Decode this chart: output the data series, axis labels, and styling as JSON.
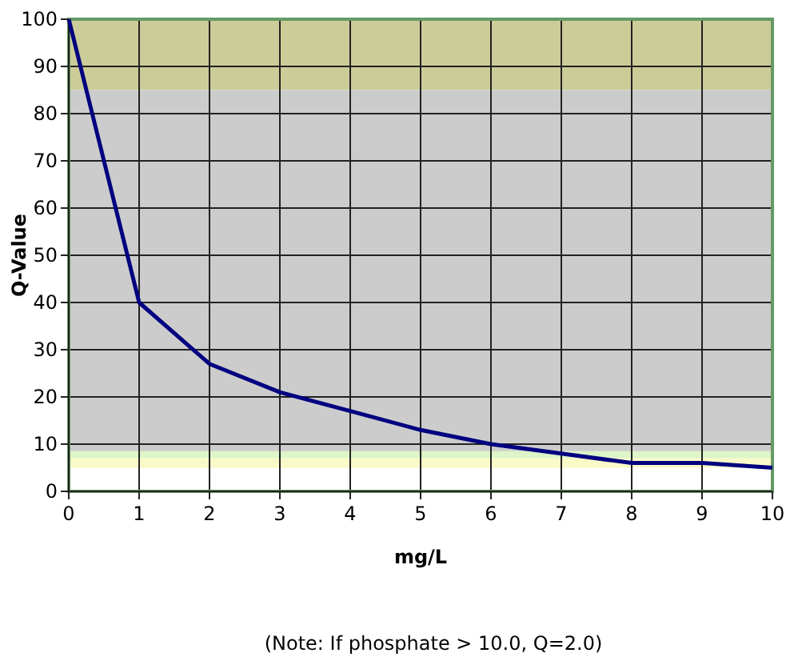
{
  "chart_data": {
    "type": "line",
    "xlabel": "mg/L",
    "ylabel": "Q-Value",
    "x": [
      0,
      1,
      2,
      3,
      4,
      5,
      6,
      7,
      8,
      9,
      10
    ],
    "series": [
      {
        "color": "#000080",
        "values": [
          100,
          40,
          27,
          21,
          17,
          13,
          10,
          8,
          6,
          6,
          5
        ]
      }
    ],
    "xlim": [
      0,
      10
    ],
    "ylim": [
      0,
      100
    ],
    "xticks": [
      0,
      1,
      2,
      3,
      4,
      5,
      6,
      7,
      8,
      9,
      10
    ],
    "yticks": [
      0,
      10,
      20,
      30,
      40,
      50,
      60,
      70,
      80,
      90,
      100
    ],
    "grid": true,
    "marker": "none",
    "line_style": "solid",
    "bands": [
      {
        "axis": "y",
        "from": 85,
        "to": 100,
        "color": "#cccc99"
      },
      {
        "axis": "y",
        "from": 8.5,
        "to": 85,
        "color": "#cccccc"
      },
      {
        "axis": "y",
        "from": 7,
        "to": 8.5,
        "color": "#ddf5c8"
      },
      {
        "axis": "y",
        "from": 5,
        "to": 7,
        "color": "#fafac8"
      }
    ],
    "annotations": [
      "(Note: If phosphate > 10.0, Q=2.0)"
    ]
  }
}
